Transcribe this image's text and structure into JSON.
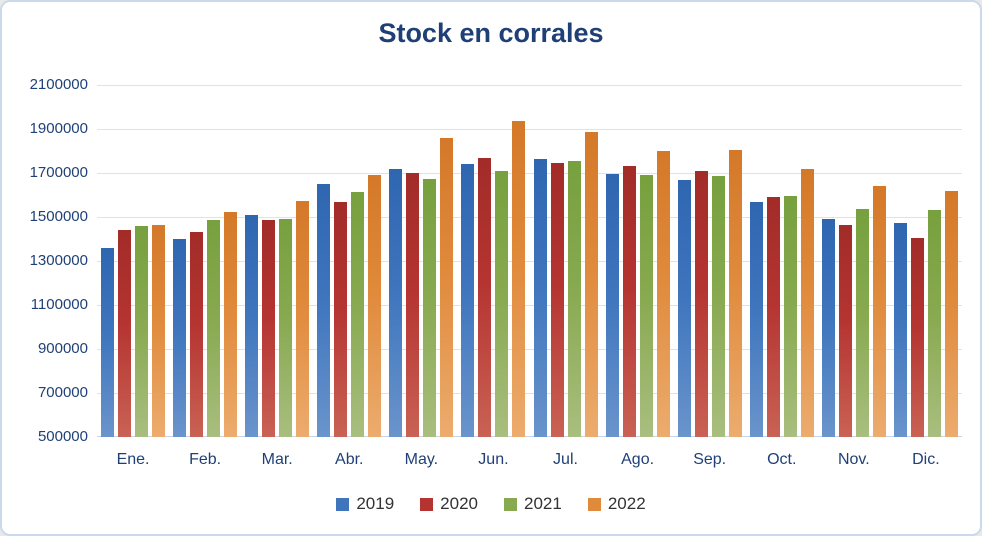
{
  "chart_data": {
    "type": "bar",
    "title": "Stock en corrales",
    "categories": [
      "Ene.",
      "Feb.",
      "Mar.",
      "Abr.",
      "May.",
      "Jun.",
      "Jul.",
      "Ago.",
      "Sep.",
      "Oct.",
      "Nov.",
      "Dic."
    ],
    "series": [
      {
        "name": "2019",
        "color": "#3E75BD",
        "values": [
          1360000,
          1400000,
          1510000,
          1650000,
          1720000,
          1740000,
          1765000,
          1695000,
          1670000,
          1570000,
          1490000,
          1475000
        ]
      },
      {
        "name": "2020",
        "color": "#B53431",
        "values": [
          1440000,
          1430000,
          1485000,
          1570000,
          1700000,
          1770000,
          1745000,
          1730000,
          1710000,
          1590000,
          1465000,
          1405000
        ]
      },
      {
        "name": "2021",
        "color": "#87A94F",
        "values": [
          1460000,
          1485000,
          1490000,
          1615000,
          1675000,
          1710000,
          1755000,
          1690000,
          1685000,
          1595000,
          1535000,
          1530000
        ]
      },
      {
        "name": "2022",
        "color": "#E08A3C",
        "values": [
          1465000,
          1525000,
          1575000,
          1690000,
          1860000,
          1935000,
          1885000,
          1800000,
          1805000,
          1720000,
          1640000,
          1620000
        ]
      }
    ],
    "ylim": [
      500000,
      2100000
    ],
    "ytick_interval": 200000,
    "ytick_labels": [
      "2100000",
      "1900000",
      "1700000",
      "1500000",
      "1300000",
      "1100000",
      "900000",
      "700000",
      "500000"
    ],
    "xlabel": "",
    "ylabel": "",
    "grid": true,
    "legend_position": "bottom",
    "legend_entries": [
      "2019",
      "2020",
      "2021",
      "2022"
    ],
    "styles": {
      "title_color": "#1F4077",
      "axis_label_color": "#1F4077",
      "gridline_color": "#dbe3f1",
      "axis_line_color": "#c6d4e9",
      "legend_text_color": "#333333",
      "bar_gradients": {
        "2019": [
          "#2F66B0",
          "#3E75BD",
          "#6A94CC"
        ],
        "2020": [
          "#A22C28",
          "#B53431",
          "#C96255"
        ],
        "2021": [
          "#77A03E",
          "#87A94F",
          "#A9BE7F"
        ],
        "2022": [
          "#D47829",
          "#E08A3C",
          "#ECAC6E"
        ]
      }
    }
  }
}
